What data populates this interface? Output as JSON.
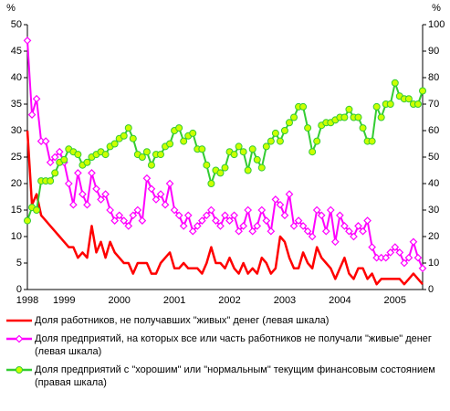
{
  "chart_data": {
    "type": "line",
    "ylabel": "%",
    "y2label": "%",
    "categories": [
      "1998",
      null,
      null,
      null,
      null,
      null,
      null,
      null,
      "1999",
      null,
      null,
      null,
      null,
      null,
      null,
      null,
      null,
      null,
      null,
      null,
      "2000",
      null,
      null,
      null,
      null,
      null,
      null,
      null,
      null,
      null,
      null,
      null,
      "2001",
      null,
      null,
      null,
      null,
      null,
      null,
      null,
      null,
      null,
      null,
      null,
      "2002",
      null,
      null,
      null,
      null,
      null,
      null,
      null,
      null,
      null,
      null,
      null,
      "2003",
      null,
      null,
      null,
      null,
      null,
      null,
      null,
      null,
      null,
      null,
      null,
      "2004",
      null,
      null,
      null,
      null,
      null,
      null,
      null,
      null,
      null,
      null,
      null,
      "2005",
      null,
      null,
      null,
      null,
      null,
      null
    ],
    "ylim": [
      0,
      50
    ],
    "yticks": [
      0,
      5,
      10,
      15,
      20,
      25,
      30,
      35,
      40,
      45,
      50
    ],
    "y2lim": [
      0,
      100
    ],
    "y2ticks": [
      0,
      10,
      20,
      30,
      40,
      50,
      60,
      70,
      80,
      90,
      100
    ],
    "grid": false,
    "series": [
      {
        "name": "Доля работников, не получавших \"живых\" денег (левая шкала)",
        "color": "#ff0000",
        "marker": "none",
        "values": [
          30,
          16,
          18,
          14,
          13,
          12,
          11,
          10,
          9,
          8,
          8,
          6,
          7,
          6,
          12,
          7,
          9,
          6,
          9,
          7,
          6,
          5,
          5,
          3,
          5,
          5,
          5,
          3,
          3,
          5,
          6,
          7,
          4,
          4,
          5,
          4,
          4,
          4,
          3,
          5,
          8,
          5,
          5,
          4,
          6,
          4,
          3,
          5,
          3,
          4,
          3,
          6,
          5,
          3,
          4,
          10,
          9,
          6,
          4,
          4,
          7,
          5,
          4,
          8,
          6,
          5,
          4,
          2,
          4,
          6,
          3,
          2,
          4,
          4,
          2,
          3,
          1,
          2,
          2,
          2,
          2,
          2,
          1,
          2,
          3,
          2,
          1
        ]
      },
      {
        "name": "Доля предприятий, на которых все или часть работников не получали \"живые\" денег (левая шкала)",
        "color": "#ff00ff",
        "marker": "diamond",
        "values": [
          47,
          33,
          36,
          28,
          28,
          24,
          25,
          26,
          24,
          20,
          16,
          22,
          18,
          16,
          22,
          19,
          17,
          18,
          15,
          13,
          14,
          13,
          12,
          14,
          15,
          13,
          21,
          19,
          17,
          18,
          16,
          20,
          15,
          14,
          12,
          14,
          11,
          12,
          13,
          14,
          15,
          13,
          12,
          14,
          13,
          14,
          11,
          12,
          15,
          11,
          12,
          15,
          13,
          11,
          17,
          16,
          14,
          18,
          12,
          13,
          12,
          11,
          10,
          15,
          14,
          11,
          15,
          9,
          14,
          12,
          11,
          10,
          12,
          11,
          13,
          8,
          6,
          6,
          6,
          7,
          8,
          7,
          5,
          6,
          9,
          6,
          4
        ]
      },
      {
        "name": "Доля предприятий с \"хорошим\" или \"нормальным\" текущим финансовым состоянием (правая шкала)",
        "color": "#33cc33",
        "marker": "circle",
        "marker_fill": "#ccff00",
        "axis": "y2",
        "values": [
          26,
          31,
          30,
          41,
          41,
          41,
          44,
          48,
          49,
          53,
          52,
          51,
          47,
          48,
          50,
          51,
          52,
          51,
          54,
          55,
          57,
          58,
          61,
          57,
          51,
          50,
          52,
          47,
          51,
          51,
          54,
          55,
          60,
          61,
          56,
          58,
          59,
          53,
          53,
          47,
          40,
          45,
          44,
          46,
          52,
          51,
          54,
          52,
          45,
          53,
          49,
          46,
          54,
          56,
          59,
          56,
          60,
          63,
          65,
          69,
          69,
          61,
          52,
          56,
          62,
          63,
          63,
          64,
          65,
          65,
          68,
          65,
          65,
          61,
          56,
          56,
          69,
          65,
          70,
          70,
          78,
          73,
          72,
          72,
          70,
          70,
          75
        ]
      }
    ]
  }
}
